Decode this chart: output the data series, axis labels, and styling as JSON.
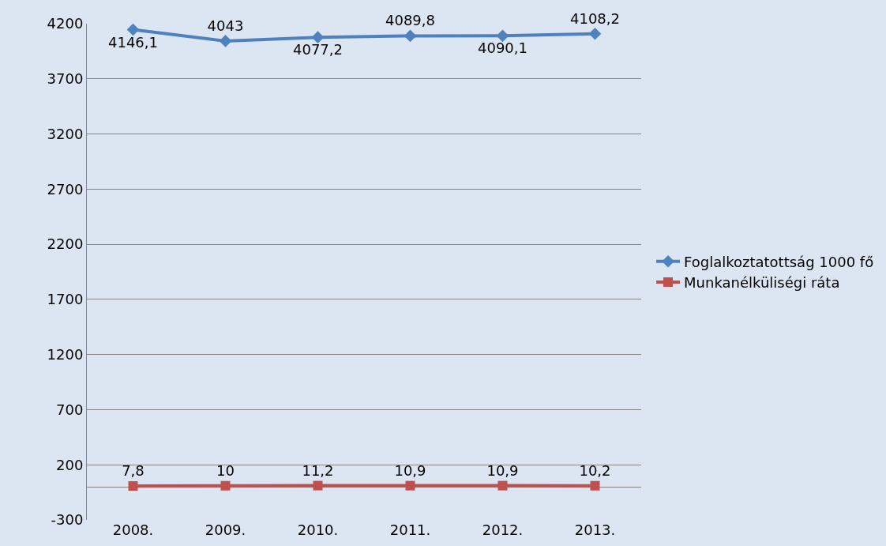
{
  "chart_data": {
    "type": "line",
    "categories": [
      "2008.",
      "2009.",
      "2010.",
      "2011.",
      "2012.",
      "2013."
    ],
    "series": [
      {
        "name": "Foglalkoztatottság 1000 fő",
        "color": "#4f81bd",
        "marker": "diamond",
        "values": [
          4146.1,
          4043,
          4077.2,
          4089.8,
          4090.1,
          4108.2
        ],
        "value_labels": [
          "4146,1",
          "4043",
          "4077,2",
          "4089,8",
          "4090,1",
          "4108,2"
        ]
      },
      {
        "name": "Munkanélküliségi ráta",
        "color": "#c0504d",
        "marker": "square",
        "values": [
          7.8,
          10,
          11.2,
          10.9,
          10.9,
          10.2
        ],
        "value_labels": [
          "7,8",
          "10",
          "11,2",
          "10,9",
          "10,9",
          "10,2"
        ]
      }
    ],
    "ylim": [
      -300,
      4200
    ],
    "yticks": [
      -300,
      200,
      700,
      1200,
      1700,
      2200,
      2700,
      3200,
      3700,
      4200
    ],
    "grid": "y",
    "legend": "right"
  }
}
